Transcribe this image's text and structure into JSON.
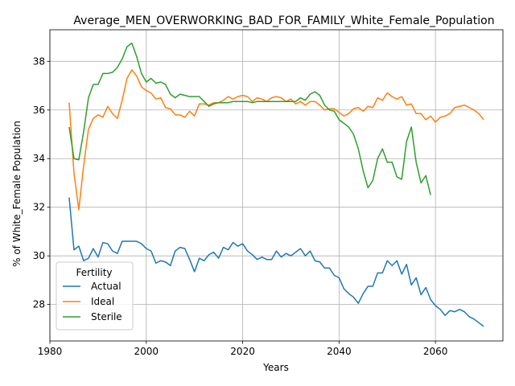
{
  "chart_data": {
    "type": "line",
    "title": "Average_MEN_OVERWORKING_BAD_FOR_FAMILY_White_Female_Population",
    "xlabel": "Years",
    "ylabel": "% of White_Female Population",
    "xlim": [
      1980,
      2074
    ],
    "ylim": [
      26.5,
      39.3
    ],
    "xticks": [
      1980,
      2000,
      2020,
      2040,
      2060
    ],
    "yticks": [
      28,
      30,
      32,
      34,
      36,
      38
    ],
    "grid": true,
    "legend": {
      "title": "Fertility",
      "placement": "lower-left"
    },
    "series": [
      {
        "name": "Actual",
        "color": "#1f77b4",
        "x": [
          1984,
          1985,
          1986,
          1987,
          1988,
          1989,
          1990,
          1991,
          1992,
          1993,
          1994,
          1995,
          1996,
          1997,
          1998,
          1999,
          2000,
          2001,
          2002,
          2003,
          2004,
          2005,
          2006,
          2007,
          2008,
          2009,
          2010,
          2011,
          2012,
          2013,
          2014,
          2015,
          2016,
          2017,
          2018,
          2019,
          2020,
          2021,
          2022,
          2023,
          2024,
          2025,
          2026,
          2027,
          2028,
          2029,
          2030,
          2031,
          2032,
          2033,
          2034,
          2035,
          2036,
          2037,
          2038,
          2039,
          2040,
          2041,
          2042,
          2043,
          2044,
          2045,
          2046,
          2047,
          2048,
          2049,
          2050,
          2051,
          2052,
          2053,
          2054,
          2055,
          2056,
          2057,
          2058,
          2059,
          2060,
          2061,
          2062,
          2063,
          2064,
          2065,
          2066,
          2067,
          2068,
          2069,
          2070
        ],
        "y": [
          32.4,
          30.25,
          30.4,
          29.8,
          29.9,
          30.3,
          29.95,
          30.55,
          30.5,
          30.2,
          30.1,
          30.6,
          30.6,
          30.6,
          30.6,
          30.5,
          30.3,
          30.2,
          29.7,
          29.8,
          29.75,
          29.6,
          30.2,
          30.35,
          30.3,
          29.85,
          29.35,
          29.9,
          29.8,
          30.05,
          30.15,
          29.9,
          30.35,
          30.25,
          30.55,
          30.4,
          30.5,
          30.2,
          30.05,
          29.85,
          29.95,
          29.85,
          29.85,
          30.2,
          29.95,
          30.1,
          30.0,
          30.15,
          30.3,
          30.0,
          30.2,
          29.8,
          29.75,
          29.5,
          29.5,
          29.2,
          29.1,
          28.65,
          28.45,
          28.3,
          28.05,
          28.45,
          28.75,
          28.75,
          29.3,
          29.3,
          29.8,
          29.6,
          29.8,
          29.25,
          29.65,
          28.8,
          29.1,
          28.4,
          28.7,
          28.2,
          27.95,
          27.8,
          27.55,
          27.75,
          27.7,
          27.8,
          27.7,
          27.5,
          27.4,
          27.25,
          27.1
        ]
      },
      {
        "name": "Ideal",
        "color": "#ff7f0e",
        "x": [
          1984,
          1985,
          1986,
          1987,
          1988,
          1989,
          1990,
          1991,
          1992,
          1993,
          1994,
          1995,
          1996,
          1997,
          1998,
          1999,
          2000,
          2001,
          2002,
          2003,
          2004,
          2005,
          2006,
          2007,
          2008,
          2009,
          2010,
          2011,
          2012,
          2013,
          2014,
          2015,
          2016,
          2017,
          2018,
          2019,
          2020,
          2021,
          2022,
          2023,
          2024,
          2025,
          2026,
          2027,
          2028,
          2029,
          2030,
          2031,
          2032,
          2033,
          2034,
          2035,
          2036,
          2037,
          2038,
          2039,
          2040,
          2041,
          2042,
          2043,
          2044,
          2045,
          2046,
          2047,
          2048,
          2049,
          2050,
          2051,
          2052,
          2053,
          2054,
          2055,
          2056,
          2057,
          2058,
          2059,
          2060,
          2061,
          2062,
          2063,
          2064,
          2065,
          2066,
          2067,
          2068,
          2069,
          2070
        ],
        "y": [
          36.3,
          33.4,
          31.9,
          33.7,
          35.2,
          35.65,
          35.8,
          35.7,
          36.15,
          35.85,
          35.65,
          36.4,
          37.3,
          37.65,
          37.4,
          36.95,
          36.8,
          36.7,
          36.45,
          36.5,
          36.1,
          36.05,
          35.8,
          35.8,
          35.7,
          35.95,
          35.75,
          36.25,
          36.25,
          36.2,
          36.3,
          36.3,
          36.4,
          36.55,
          36.45,
          36.55,
          36.6,
          36.55,
          36.35,
          36.5,
          36.45,
          36.35,
          36.5,
          36.55,
          36.5,
          36.35,
          36.45,
          36.25,
          36.35,
          36.2,
          36.35,
          36.35,
          36.2,
          36.0,
          36.05,
          36.05,
          35.9,
          35.75,
          35.85,
          36.05,
          36.1,
          35.95,
          36.15,
          36.1,
          36.5,
          36.4,
          36.7,
          36.55,
          36.45,
          36.55,
          36.2,
          36.25,
          35.85,
          35.85,
          35.6,
          35.75,
          35.5,
          35.7,
          35.75,
          35.85,
          36.1,
          36.15,
          36.2,
          36.1,
          36.0,
          35.85,
          35.6
        ]
      },
      {
        "name": "Sterile",
        "color": "#2ca02c",
        "x": [
          1984,
          1985,
          1986,
          1987,
          1988,
          1989,
          1990,
          1991,
          1992,
          1993,
          1994,
          1995,
          1996,
          1997,
          1998,
          1999,
          2000,
          2001,
          2002,
          2003,
          2004,
          2005,
          2006,
          2007,
          2008,
          2009,
          2010,
          2011,
          2012,
          2013,
          2014,
          2015,
          2016,
          2017,
          2018,
          2019,
          2020,
          2021,
          2022,
          2023,
          2024,
          2025,
          2026,
          2027,
          2028,
          2029,
          2030,
          2031,
          2032,
          2033,
          2034,
          2035,
          2036,
          2037,
          2038,
          2039,
          2040,
          2041,
          2042,
          2043,
          2044,
          2045,
          2046,
          2047,
          2048,
          2049,
          2050,
          2051,
          2052,
          2053,
          2054,
          2055,
          2056,
          2057,
          2058,
          2059
        ],
        "y": [
          35.3,
          34.0,
          33.95,
          35.1,
          36.5,
          37.05,
          37.05,
          37.5,
          37.5,
          37.55,
          37.75,
          38.1,
          38.6,
          38.75,
          38.2,
          37.5,
          37.15,
          37.3,
          37.1,
          37.15,
          37.05,
          36.65,
          36.5,
          36.65,
          36.6,
          36.55,
          36.55,
          36.55,
          36.35,
          36.15,
          36.25,
          36.3,
          36.3,
          36.3,
          36.35,
          36.35,
          36.35,
          36.35,
          36.3,
          36.35,
          36.35,
          36.35,
          36.35,
          36.35,
          36.35,
          36.35,
          36.35,
          36.35,
          36.5,
          36.4,
          36.65,
          36.75,
          36.6,
          36.2,
          36.0,
          35.95,
          35.6,
          35.45,
          35.3,
          35.0,
          34.4,
          33.5,
          32.8,
          33.1,
          34.0,
          34.4,
          33.85,
          33.85,
          33.25,
          33.15,
          34.7,
          35.3,
          33.85,
          33.0,
          33.3,
          32.5
        ]
      }
    ]
  }
}
